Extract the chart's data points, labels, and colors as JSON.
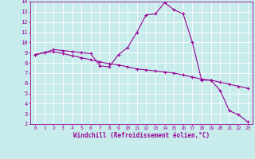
{
  "xlabel": "Windchill (Refroidissement éolien,°C)",
  "background_color": "#c8ecec",
  "line_color": "#990099",
  "grid_color": "#ffffff",
  "xlim": [
    -0.5,
    23.5
  ],
  "ylim": [
    2,
    14
  ],
  "xticks": [
    0,
    1,
    2,
    3,
    4,
    5,
    6,
    7,
    8,
    9,
    10,
    11,
    12,
    13,
    14,
    15,
    16,
    17,
    18,
    19,
    20,
    21,
    22,
    23
  ],
  "yticks": [
    2,
    3,
    4,
    5,
    6,
    7,
    8,
    9,
    10,
    11,
    12,
    13,
    14
  ],
  "line1_x": [
    0,
    1,
    2,
    3,
    4,
    5,
    6,
    7,
    8,
    9,
    10,
    11,
    12,
    13,
    14,
    15,
    16,
    17,
    18,
    19,
    20,
    21,
    22,
    23
  ],
  "line1_y": [
    8.8,
    9.0,
    9.3,
    9.2,
    9.1,
    9.0,
    8.9,
    7.7,
    7.6,
    8.8,
    9.5,
    11.0,
    12.7,
    12.8,
    13.9,
    13.2,
    12.8,
    10.0,
    6.3,
    6.3,
    5.3,
    3.3,
    2.9,
    2.2
  ],
  "line2_x": [
    0,
    1,
    2,
    3,
    4,
    5,
    6,
    7,
    8,
    9,
    10,
    11,
    12,
    13,
    14,
    15,
    16,
    17,
    18,
    19,
    20,
    21,
    22,
    23
  ],
  "line2_y": [
    8.8,
    9.0,
    9.1,
    8.9,
    8.7,
    8.5,
    8.3,
    8.1,
    7.9,
    7.8,
    7.6,
    7.4,
    7.3,
    7.2,
    7.1,
    7.0,
    6.8,
    6.6,
    6.4,
    6.3,
    6.1,
    5.9,
    5.7,
    5.5
  ],
  "xticklabel_fontsize": 4.5,
  "yticklabel_fontsize": 5.0,
  "xlabel_fontsize": 5.5
}
